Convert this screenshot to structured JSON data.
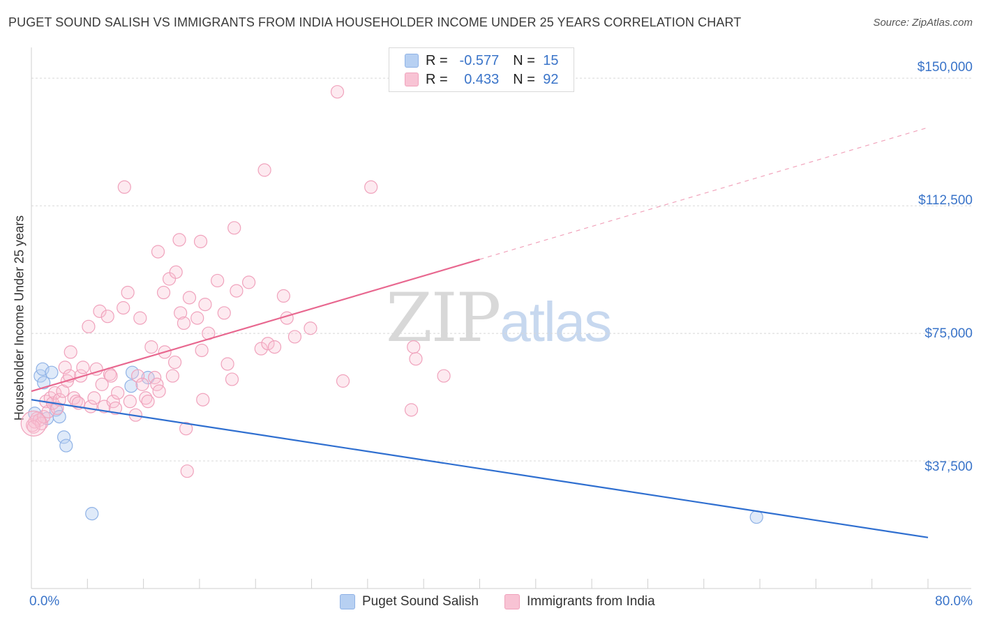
{
  "chart_data": {
    "type": "scatter",
    "title": "PUGET SOUND SALISH VS IMMIGRANTS FROM INDIA HOUSEHOLDER INCOME UNDER 25 YEARS CORRELATION CHART",
    "source": "Source: ZipAtlas.com",
    "ylabel": "Householder Income Under 25 years",
    "xlabel": "",
    "xlim": [
      0,
      80
    ],
    "ylim": [
      0,
      157000
    ],
    "x_tick_labels": [
      "0.0%",
      "80.0%"
    ],
    "y_ticks": [
      {
        "value": 150000,
        "label": "$150,000"
      },
      {
        "value": 112500,
        "label": "$112,500"
      },
      {
        "value": 75000,
        "label": "$75,000"
      },
      {
        "value": 37500,
        "label": "$37,500"
      }
    ],
    "grid": true,
    "legend_position": "top-center",
    "watermark": {
      "zip": "ZIP",
      "atlas": "atlas"
    },
    "series": [
      {
        "name": "Puget Sound Salish",
        "color": "#8fb2e6",
        "line_color": "#2f6fd0",
        "R": "-0.577",
        "N": "15",
        "trend": {
          "x0": 0,
          "y0": 55500,
          "x1": 80,
          "y1": 15000,
          "dashed_from_x": null
        },
        "points": [
          [
            0.3,
            51.5
          ],
          [
            0.8,
            62.5
          ],
          [
            1.0,
            64.5
          ],
          [
            1.1,
            60.5
          ],
          [
            1.4,
            50
          ],
          [
            1.8,
            63.5
          ],
          [
            2.2,
            52.5
          ],
          [
            2.5,
            50.5
          ],
          [
            2.9,
            44.5
          ],
          [
            3.1,
            42
          ],
          [
            5.4,
            22
          ],
          [
            8.9,
            59.5
          ],
          [
            9.0,
            63.5
          ],
          [
            10.4,
            62
          ],
          [
            64.7,
            21
          ]
        ]
      },
      {
        "name": "Immigrants from India",
        "color": "#f0a2bc",
        "line_color": "#e8678f",
        "R": "0.433",
        "N": "92",
        "trend": {
          "x0": 0,
          "y0": 58000,
          "x1": 80,
          "y1": 135500,
          "dashed_from_x": 40
        },
        "points": [
          [
            0.1,
            48
          ],
          [
            0.3,
            49
          ],
          [
            0.5,
            50
          ],
          [
            0.7,
            49.5
          ],
          [
            0.9,
            48.5
          ],
          [
            1.1,
            50.5
          ],
          [
            1.3,
            55
          ],
          [
            1.5,
            52
          ],
          [
            1.7,
            56
          ],
          [
            1.9,
            54.5
          ],
          [
            2.1,
            57.5
          ],
          [
            2.3,
            53
          ],
          [
            2.5,
            55.5
          ],
          [
            2.8,
            58
          ],
          [
            3.0,
            65
          ],
          [
            3.2,
            61
          ],
          [
            3.4,
            62.5
          ],
          [
            3.5,
            69.5
          ],
          [
            3.8,
            56
          ],
          [
            4.0,
            55
          ],
          [
            4.2,
            54.5
          ],
          [
            4.4,
            62.5
          ],
          [
            4.6,
            65
          ],
          [
            5.1,
            77
          ],
          [
            5.3,
            53.5
          ],
          [
            5.6,
            56
          ],
          [
            5.8,
            64.5
          ],
          [
            6.1,
            81.5
          ],
          [
            6.3,
            60
          ],
          [
            6.5,
            53.5
          ],
          [
            6.8,
            80
          ],
          [
            7.0,
            63
          ],
          [
            7.1,
            62.5
          ],
          [
            7.3,
            55
          ],
          [
            7.5,
            53
          ],
          [
            7.7,
            57.5
          ],
          [
            8.2,
            82.5
          ],
          [
            8.3,
            118
          ],
          [
            8.6,
            87
          ],
          [
            8.8,
            55
          ],
          [
            9.3,
            51
          ],
          [
            9.5,
            62.5
          ],
          [
            9.7,
            79.5
          ],
          [
            9.9,
            60
          ],
          [
            10.2,
            56
          ],
          [
            10.4,
            55
          ],
          [
            10.7,
            71
          ],
          [
            11.0,
            62
          ],
          [
            11.2,
            60
          ],
          [
            11.3,
            99
          ],
          [
            11.4,
            58
          ],
          [
            11.8,
            87
          ],
          [
            11.9,
            69.5
          ],
          [
            12.3,
            91
          ],
          [
            12.6,
            62.5
          ],
          [
            12.8,
            66.5
          ],
          [
            12.9,
            93
          ],
          [
            13.2,
            102.5
          ],
          [
            13.3,
            81
          ],
          [
            13.6,
            78
          ],
          [
            13.8,
            47
          ],
          [
            13.9,
            34.5
          ],
          [
            14.1,
            85.5
          ],
          [
            14.8,
            79.5
          ],
          [
            15.1,
            102
          ],
          [
            15.2,
            70
          ],
          [
            15.3,
            55.5
          ],
          [
            15.5,
            83.5
          ],
          [
            15.8,
            75
          ],
          [
            16.6,
            90.5
          ],
          [
            17.2,
            81
          ],
          [
            17.5,
            66
          ],
          [
            17.9,
            61.5
          ],
          [
            18.1,
            106
          ],
          [
            18.3,
            87.5
          ],
          [
            19.4,
            90
          ],
          [
            20.5,
            70.5
          ],
          [
            20.8,
            123
          ],
          [
            21.1,
            72
          ],
          [
            21.7,
            71
          ],
          [
            22.5,
            86
          ],
          [
            22.8,
            79.5
          ],
          [
            23.5,
            74
          ],
          [
            24.9,
            76.5
          ],
          [
            27.3,
            146
          ],
          [
            27.8,
            61
          ],
          [
            30.3,
            118
          ],
          [
            33.9,
            52.5
          ],
          [
            34.1,
            71
          ],
          [
            34.3,
            67.5
          ],
          [
            36.8,
            62.5
          ],
          [
            0.2,
            47.5
          ]
        ]
      }
    ]
  }
}
